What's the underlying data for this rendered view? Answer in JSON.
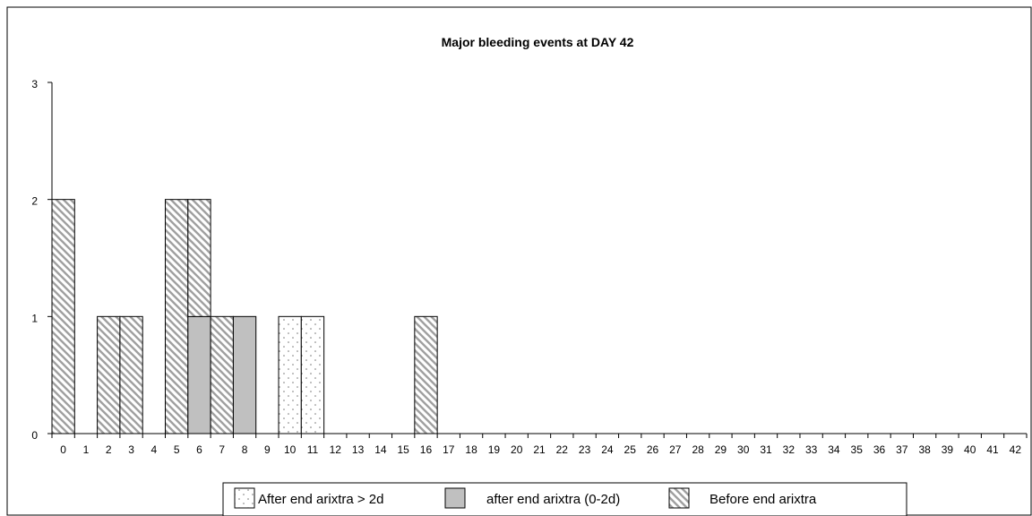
{
  "chart_data": {
    "type": "bar",
    "stacked": true,
    "title": "Major bleeding events at DAY 42",
    "xlabel": "",
    "ylabel": "",
    "ylim": [
      0,
      3
    ],
    "yticks": [
      "0",
      "1",
      "2",
      "3"
    ],
    "categories": [
      "0",
      "1",
      "2",
      "3",
      "4",
      "5",
      "6",
      "7",
      "8",
      "9",
      "10",
      "11",
      "12",
      "13",
      "14",
      "15",
      "16",
      "17",
      "18",
      "19",
      "20",
      "21",
      "22",
      "23",
      "24",
      "25",
      "26",
      "27",
      "28",
      "29",
      "30",
      "31",
      "32",
      "33",
      "34",
      "35",
      "36",
      "37",
      "38",
      "39",
      "40",
      "41",
      "42"
    ],
    "series": [
      {
        "name": "After end arixtra > 2d",
        "pattern": "dots",
        "values": [
          0,
          0,
          0,
          0,
          0,
          0,
          0,
          0,
          0,
          0,
          1,
          1,
          0,
          0,
          0,
          0,
          0,
          0,
          0,
          0,
          0,
          0,
          0,
          0,
          0,
          0,
          0,
          0,
          0,
          0,
          0,
          0,
          0,
          0,
          0,
          0,
          0,
          0,
          0,
          0,
          0,
          0,
          0
        ]
      },
      {
        "name": "after end arixtra (0-2d)",
        "pattern": "solid",
        "color": "#c0c0c0",
        "values": [
          0,
          0,
          0,
          0,
          0,
          0,
          1,
          0,
          1,
          0,
          0,
          0,
          0,
          0,
          0,
          0,
          0,
          0,
          0,
          0,
          0,
          0,
          0,
          0,
          0,
          0,
          0,
          0,
          0,
          0,
          0,
          0,
          0,
          0,
          0,
          0,
          0,
          0,
          0,
          0,
          0,
          0,
          0
        ]
      },
      {
        "name": "Before end arixtra",
        "pattern": "diagonal",
        "values": [
          2,
          0,
          1,
          1,
          0,
          2,
          1,
          1,
          0,
          0,
          0,
          0,
          0,
          0,
          0,
          0,
          1,
          0,
          0,
          0,
          0,
          0,
          0,
          0,
          0,
          0,
          0,
          0,
          0,
          0,
          0,
          0,
          0,
          0,
          0,
          0,
          0,
          0,
          0,
          0,
          0,
          0,
          0
        ]
      }
    ],
    "grid": false,
    "legend_position": "bottom"
  }
}
